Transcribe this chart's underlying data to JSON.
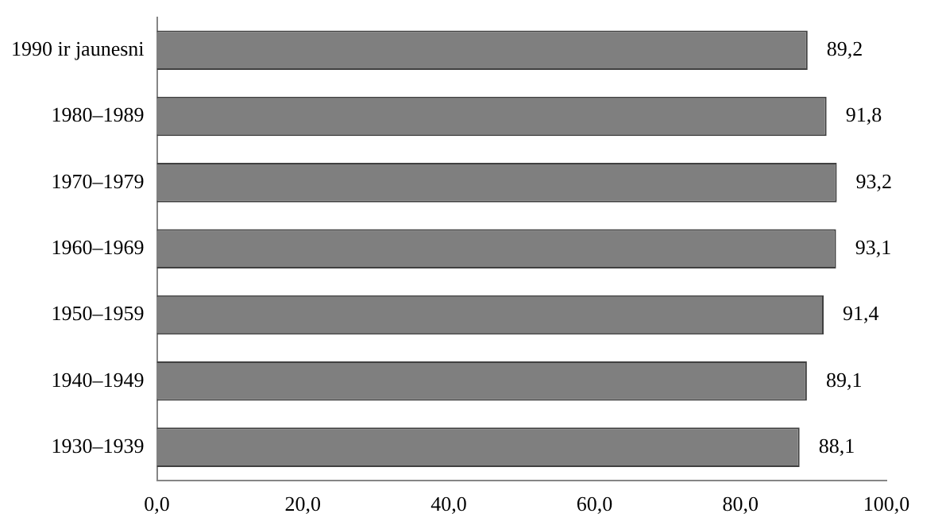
{
  "chart_data": {
    "type": "bar",
    "orientation": "horizontal",
    "categories": [
      "1990 ir jaunesni",
      "1980–1989",
      "1970–1979",
      "1960–1969",
      "1950–1959",
      "1940–1949",
      "1930–1939"
    ],
    "values": [
      89.2,
      91.8,
      93.2,
      93.1,
      91.4,
      89.1,
      88.1
    ],
    "value_labels": [
      "89,2",
      "91,8",
      "93,2",
      "93,1",
      "91,4",
      "89,1",
      "88,1"
    ],
    "color": "#7f7f7f",
    "xlim": [
      0,
      100
    ],
    "xticks": [
      {
        "value": 0,
        "label": "0,0"
      },
      {
        "value": 20,
        "label": "20,0"
      },
      {
        "value": 40,
        "label": "40,0"
      },
      {
        "value": 60,
        "label": "60,0"
      },
      {
        "value": 80,
        "label": "80,0"
      },
      {
        "value": 100,
        "label": "100,0"
      }
    ],
    "grid": false,
    "legend": false
  }
}
